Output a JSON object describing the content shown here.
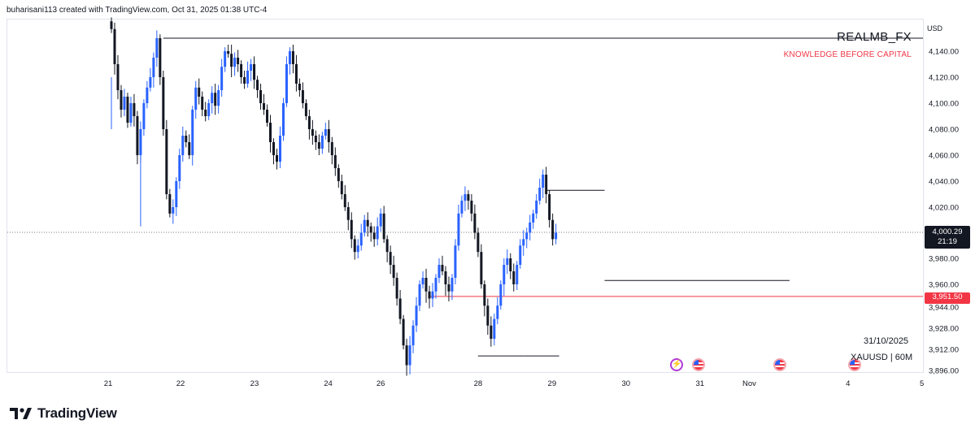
{
  "header": {
    "attribution": "buharisani113 created with TradingView.com, Oct 31, 2025 01:38 UTC-4"
  },
  "watermark": {
    "title": "REALMB_FX",
    "subtitle": "KNOWLEDGE BEFORE CAPITAL"
  },
  "stamp": {
    "date": "31/10/2025",
    "symbol": "XAUUSD | 60M"
  },
  "brand": {
    "name": "TradingView"
  },
  "currency_badge": "USD",
  "current_price": {
    "value": "4,000.29",
    "countdown": "21:19"
  },
  "marked_level": {
    "value": "3,951.50"
  },
  "colors": {
    "up": "#2962ff",
    "down": "#131722",
    "level": "#f23645",
    "accent_event": "#b03ad6"
  },
  "icons": [
    "lightning-event-icon",
    "us-flag-event-icon"
  ],
  "chart_data": {
    "type": "candlestick",
    "symbol": "XAUUSD",
    "interval": "60M",
    "ylim": [
      3890,
      4160
    ],
    "y_ticks": [
      4140,
      4120,
      4100,
      4080,
      4060,
      4040,
      4020,
      3980,
      3960,
      3944,
      3928,
      3912,
      3896
    ],
    "y_tick_labels": [
      "4,140.00",
      "4,120.00",
      "4,100.00",
      "4,080.00",
      "4,060.00",
      "4,040.00",
      "4,020.00",
      "3,980.00",
      "3,960.00",
      "3,944.00",
      "3,928.00",
      "3,912.00",
      "3,896.00"
    ],
    "x_ticks": [
      {
        "label": "21",
        "pos": -1
      },
      {
        "label": "22",
        "pos": 21.3
      },
      {
        "label": "23",
        "pos": 44.1
      },
      {
        "label": "24",
        "pos": 66.8
      },
      {
        "label": "26",
        "pos": 83.0
      },
      {
        "label": "28",
        "pos": 113.0
      },
      {
        "label": "29",
        "pos": 135.8
      },
      {
        "label": "30",
        "pos": 158.6
      },
      {
        "label": "31",
        "pos": 181.4
      },
      {
        "label": "Nov",
        "pos": 196.6
      },
      {
        "label": "4",
        "pos": 227.0
      },
      {
        "label": "5",
        "pos": 249.8
      }
    ],
    "current_price": 4000.29,
    "horizontal_level": 3951.5,
    "annotation_lines": [
      {
        "from": 16,
        "to": 261,
        "y": 4150
      },
      {
        "from": 134,
        "to": 152,
        "y": 4033
      },
      {
        "from": 152,
        "to": 209,
        "y": 3963
      },
      {
        "from": 113,
        "to": 127,
        "y": 3907
      },
      {
        "from": 127,
        "to": 138,
        "y": 3907
      }
    ],
    "closes": [
      4157,
      4130,
      4110,
      4095,
      4105,
      4085,
      4100,
      4090,
      4060,
      4080,
      4100,
      4112,
      4120,
      4135,
      4150,
      4120,
      4080,
      4030,
      4015,
      4020,
      4040,
      4060,
      4075,
      4070,
      4060,
      4095,
      4112,
      4105,
      4095,
      4090,
      4100,
      4108,
      4098,
      4110,
      4128,
      4140,
      4138,
      4128,
      4135,
      4130,
      4120,
      4115,
      4125,
      4130,
      4118,
      4110,
      4100,
      4095,
      4085,
      4070,
      4060,
      4055,
      4075,
      4100,
      4130,
      4140,
      4130,
      4115,
      4110,
      4100,
      4090,
      4080,
      4075,
      4070,
      4065,
      4075,
      4080,
      4070,
      4060,
      4050,
      4040,
      4030,
      4020,
      4010,
      3995,
      3985,
      3990,
      4000,
      4010,
      4005,
      4000,
      3995,
      4005,
      4015,
      3995,
      3985,
      3975,
      3965,
      3950,
      3935,
      3915,
      3900,
      3915,
      3930,
      3945,
      3960,
      3965,
      3955,
      3950,
      3955,
      3965,
      3975,
      3970,
      3960,
      3955,
      3965,
      3990,
      4015,
      4025,
      4030,
      4025,
      4015,
      4000,
      3985,
      3960,
      3945,
      3930,
      3920,
      3935,
      3945,
      3960,
      3975,
      3980,
      3970,
      3960,
      3975,
      3990,
      3995,
      4000,
      4008,
      4015,
      4025,
      4035,
      4045,
      4030,
      4010,
      3995,
      4000
    ]
  }
}
